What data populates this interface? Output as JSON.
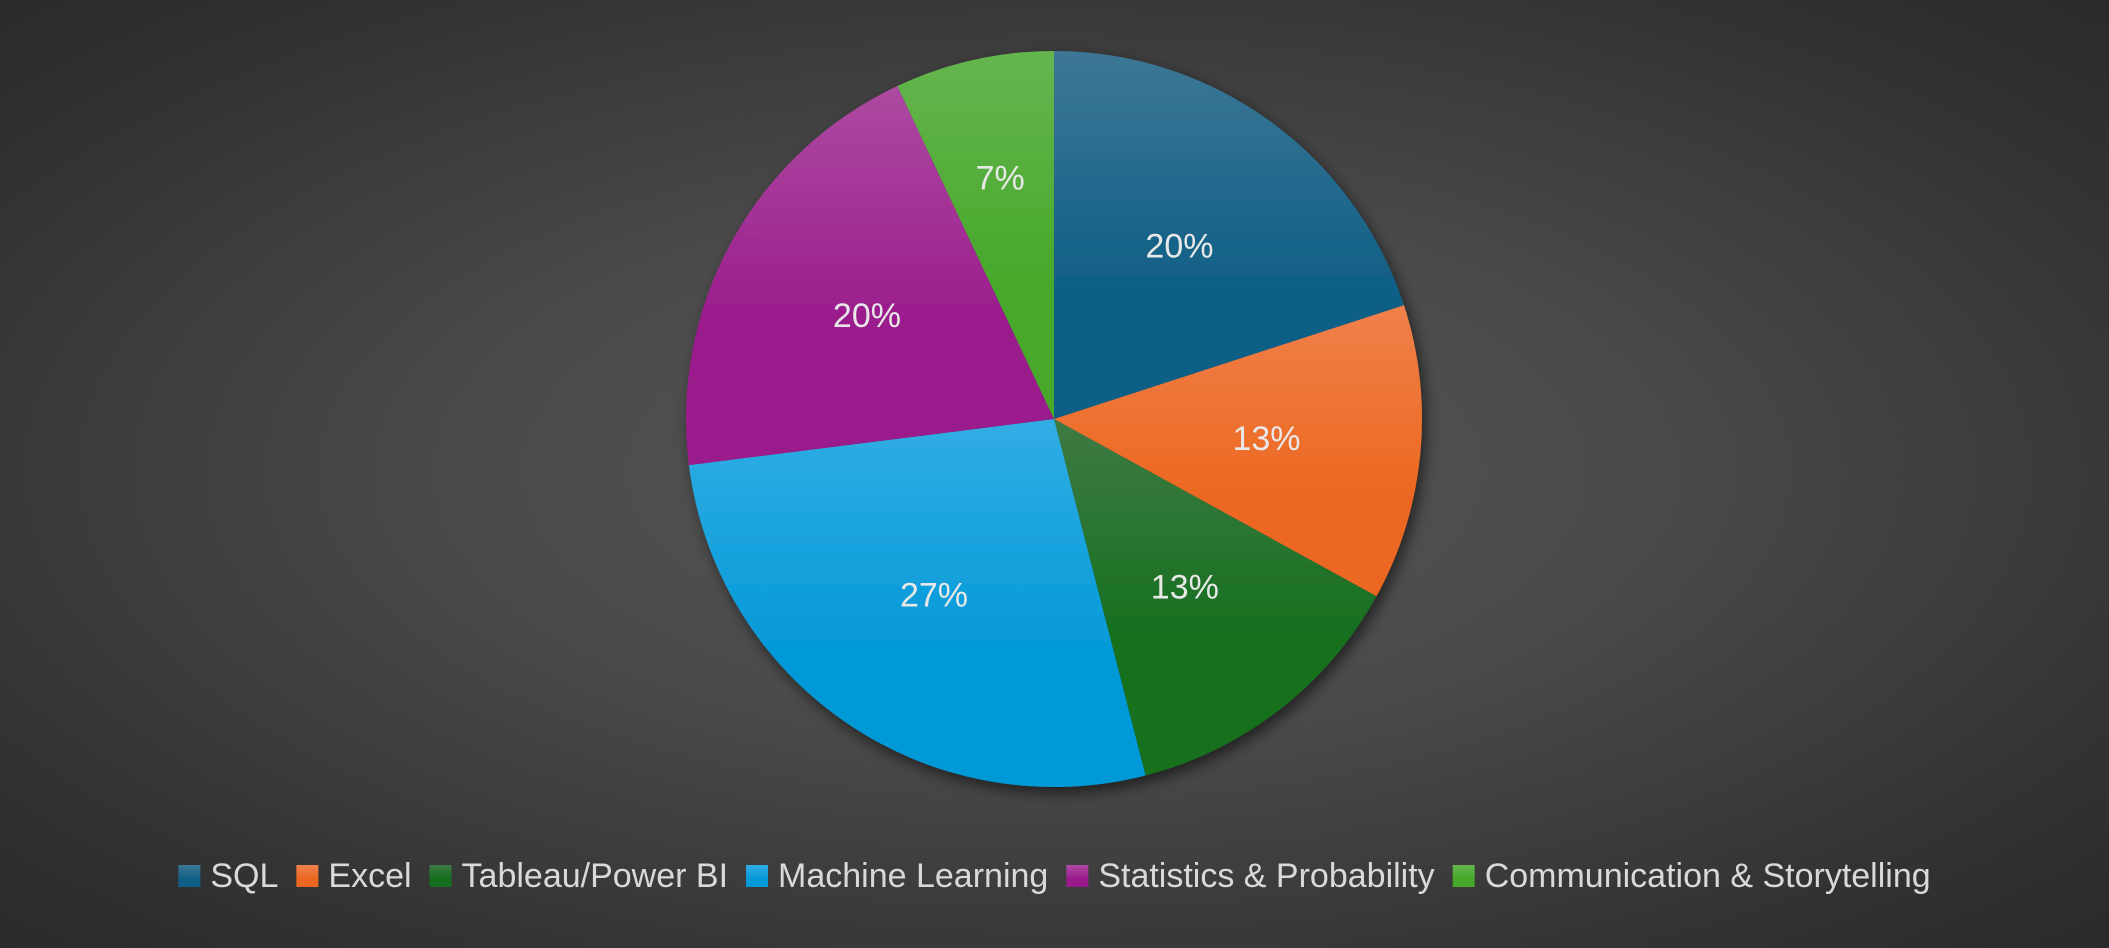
{
  "chart_data": {
    "type": "pie",
    "title": "",
    "legend_position": "bottom",
    "start_angle_deg": 0,
    "direction": "clockwise",
    "slices": [
      {
        "name": "SQL",
        "value": 20,
        "label": "20%",
        "color": "#0f5f86",
        "color_light": "#3d7796"
      },
      {
        "name": "Excel",
        "value": 13,
        "label": "13%",
        "color": "#ec6820",
        "color_light": "#f0804a"
      },
      {
        "name": "Tableau/Power BI",
        "value": 13,
        "label": "13%",
        "color": "#136f1d",
        "color_light": "#3e7a44"
      },
      {
        "name": "Machine Learning",
        "value": 27,
        "label": "27%",
        "color": "#0399d8",
        "color_light": "#32ade4"
      },
      {
        "name": "Statistics & Probability",
        "value": 20,
        "label": "20%",
        "color": "#9a1a8c",
        "color_light": "#ad4aa1"
      },
      {
        "name": "Communication & Storytelling",
        "value": 7,
        "label": "7%",
        "color": "#46a829",
        "color_light": "#65b54f"
      }
    ]
  }
}
